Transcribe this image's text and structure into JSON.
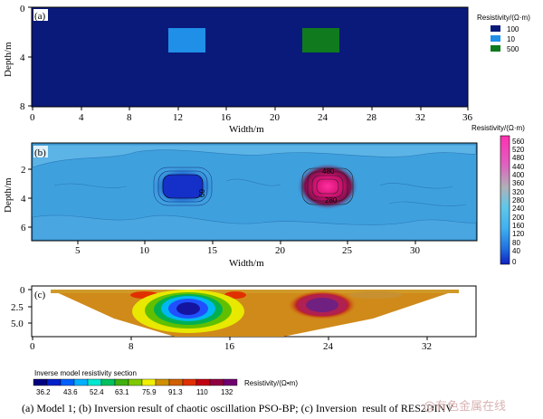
{
  "panel_a": {
    "tag": "(a)",
    "ylabel": "Depth/m",
    "xlabel": "Width/m",
    "yticks": [
      "0",
      "4",
      "8"
    ],
    "xticks": [
      "0",
      "4",
      "8",
      "12",
      "16",
      "20",
      "24",
      "28",
      "32",
      "36"
    ],
    "legend_title": "Resistivity/(Ω·m)",
    "legend": [
      {
        "label": "100",
        "color": "#0a1a7a"
      },
      {
        "label": "10",
        "color": "#1f8fe8"
      },
      {
        "label": "500",
        "color": "#0f7a1e"
      }
    ],
    "colors": {
      "background": "#0a1a7a",
      "low_block": "#1f8fe8",
      "high_block": "#0f7a1e"
    }
  },
  "panel_b": {
    "tag": "(b)",
    "ylabel": "Depth/m",
    "xlabel": "Width/m",
    "yticks": [
      "2",
      "4",
      "6"
    ],
    "xticks": [
      "5",
      "10",
      "15",
      "20",
      "25",
      "30"
    ],
    "contour_labels": [
      "60",
      "480",
      "280"
    ],
    "colorbar_title": "Resistivity/(Ω·m)",
    "colorbar_ticks": [
      "560",
      "520",
      "480",
      "440",
      "400",
      "360",
      "320",
      "280",
      "240",
      "200",
      "160",
      "120",
      "80",
      "40",
      "0"
    ]
  },
  "panel_c": {
    "tag": "(c)",
    "yticks": [
      "0",
      "2.5",
      "5.0"
    ],
    "xticks": [
      "0",
      "8",
      "16",
      "24",
      "32"
    ],
    "legend_title": "Inverse model resistivity section",
    "legend_values": [
      "36.2",
      "43.6",
      "52.4",
      "63.1",
      "75.9",
      "91.3",
      "110",
      "132"
    ],
    "legend_unit": "Resistivity/(Ω•m)",
    "legend_colors": [
      "#000080",
      "#0020c8",
      "#0060ff",
      "#00b0ff",
      "#00e8d0",
      "#00c060",
      "#40b010",
      "#80c800",
      "#f0f000",
      "#d09000",
      "#d06000",
      "#e03000",
      "#c00010",
      "#900040",
      "#700070"
    ]
  },
  "caption": "(a) Model 1; (b) Inversion result of chaotic oscillation PSO-BP; (c) Inversion  result of RES2DINV",
  "watermark": "@有色金属在线"
}
